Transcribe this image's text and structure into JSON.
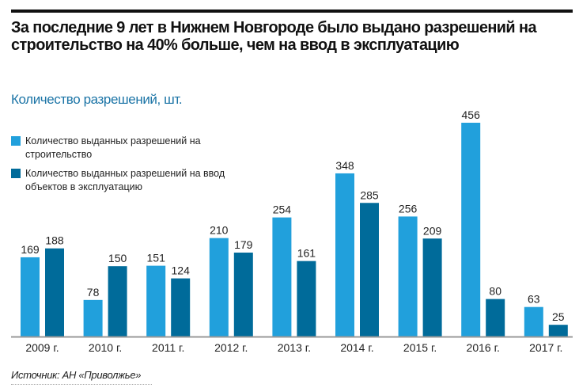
{
  "title": "За последние 9 лет в Нижнем Новгороде было выдано разрешений на строительство на 40% больше, чем на ввод в эксплуатацию",
  "subtitle": "Количество разрешений, шт.",
  "source": "Источник: АН «Приволжье»",
  "colors": {
    "construction": "#21a0dc",
    "commissioning": "#006b9a",
    "subtitle": "#1b74a6"
  },
  "chart_data": {
    "type": "bar",
    "categories": [
      "2009 г.",
      "2010 г.",
      "2011 г.",
      "2012 г.",
      "2013 г.",
      "2014 г.",
      "2015 г.",
      "2016 г.",
      "2017 г."
    ],
    "series": [
      {
        "name": "Количество выданных разрешений на строительство",
        "values": [
          169,
          78,
          151,
          210,
          254,
          348,
          256,
          456,
          63
        ]
      },
      {
        "name": "Количество выданных разрешений на ввод объектов в эксплуатацию",
        "values": [
          188,
          150,
          124,
          179,
          161,
          285,
          209,
          80,
          25
        ]
      }
    ],
    "legend": "top-left",
    "grid": false,
    "ylim": [
      0,
      456
    ]
  }
}
